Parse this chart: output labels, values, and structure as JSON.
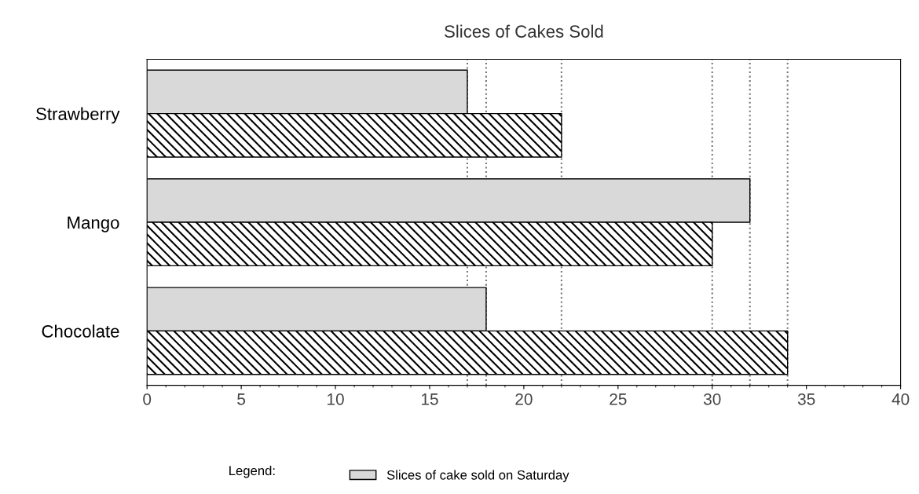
{
  "chart_data": {
    "type": "bar",
    "orientation": "horizontal",
    "title": "Slices of Cakes Sold",
    "categories": [
      "Strawberry",
      "Mango",
      "Chocolate"
    ],
    "series": [
      {
        "name": "Slices of cake sold on Saturday",
        "color": "#d9d9d9",
        "values": [
          17,
          32,
          18
        ]
      },
      {
        "color": "#000000",
        "values": [
          22,
          30,
          34
        ]
      }
    ],
    "xlim": [
      0,
      40
    ],
    "xticks": [
      0,
      5,
      10,
      15,
      20,
      25,
      30,
      35,
      40
    ],
    "ref_lines": [
      {
        "axis": "x",
        "value": 17,
        "line_style": "dotted",
        "color": "#777777"
      },
      {
        "axis": "x",
        "value": 18,
        "line_style": "dotted",
        "color": "#777777"
      },
      {
        "axis": "x",
        "value": 22,
        "line_style": "dotted",
        "color": "#777777"
      },
      {
        "axis": "x",
        "value": 30,
        "line_style": "dotted",
        "color": "#777777"
      },
      {
        "axis": "x",
        "value": 32,
        "line_style": "dotted",
        "color": "#777777"
      },
      {
        "axis": "x",
        "value": 34,
        "line_style": "dotted",
        "color": "#777777"
      }
    ],
    "legend": "bottom",
    "legend_title": "Legend:",
    "grid": false
  }
}
